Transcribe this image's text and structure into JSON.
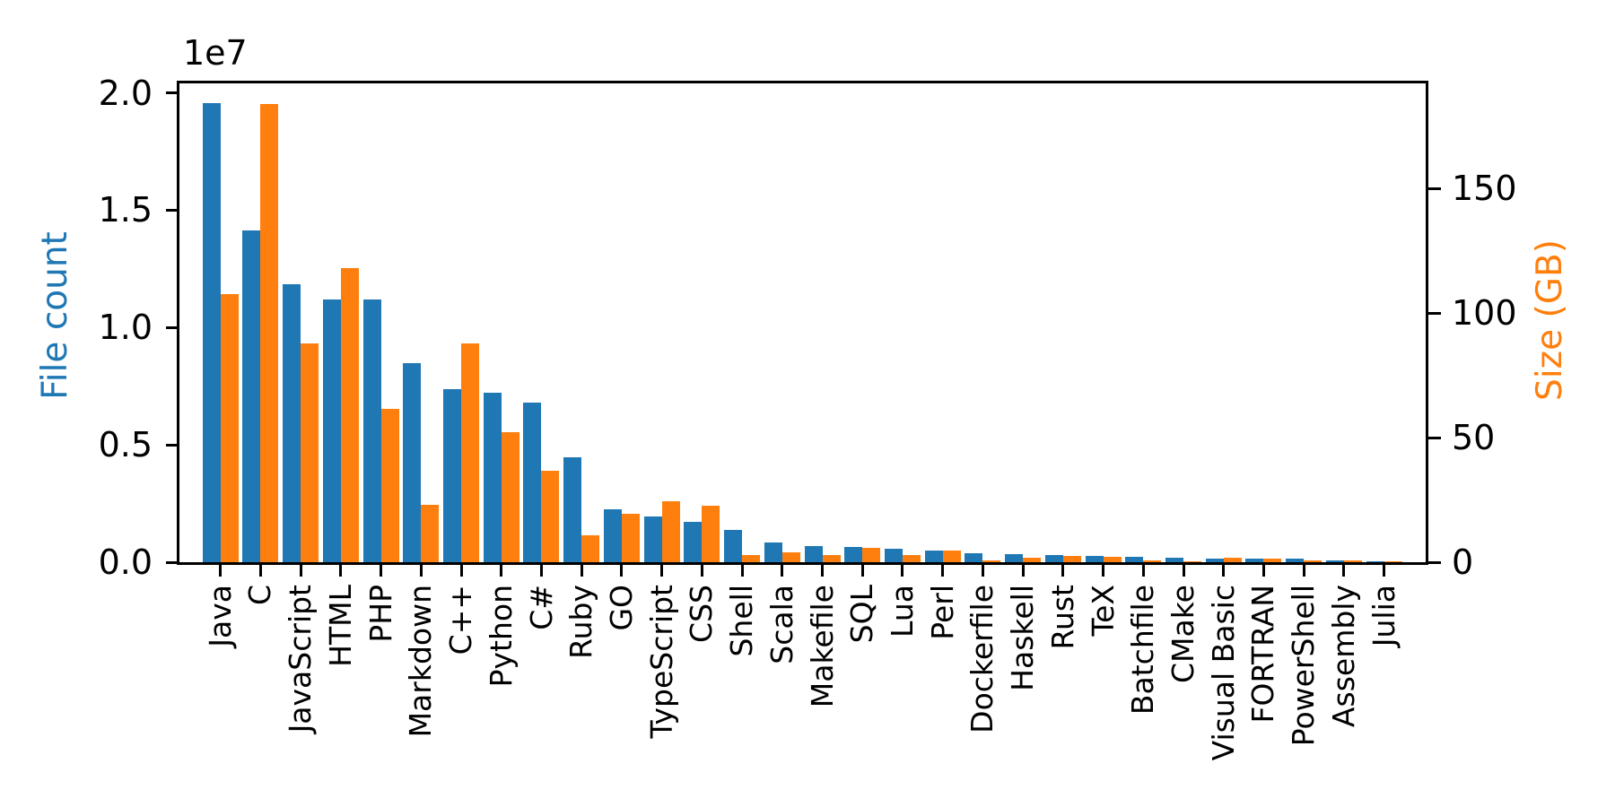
{
  "figure": {
    "background": "#ffffff",
    "spine_color": "#000000",
    "tick_color": "#000000"
  },
  "chart_data": {
    "type": "bar",
    "title": "",
    "grid": false,
    "legend": null,
    "categories": [
      "Java",
      "C",
      "JavaScript",
      "HTML",
      "PHP",
      "Markdown",
      "C++",
      "Python",
      "C#",
      "Ruby",
      "GO",
      "TypeScript",
      "CSS",
      "Shell",
      "Scala",
      "Makefile",
      "SQL",
      "Lua",
      "Perl",
      "Dockerfile",
      "Haskell",
      "Rust",
      "TeX",
      "Batchfile",
      "CMake",
      "Visual Basic",
      "FORTRAN",
      "PowerShell",
      "Assembly",
      "Julia"
    ],
    "series": [
      {
        "name": "File count",
        "axis": "left",
        "color": "#1f77b4",
        "values": [
          19548190,
          14143113,
          11839883,
          11178557,
          11177610,
          8464626,
          7380520,
          7226626,
          6811652,
          4473331,
          2265436,
          1940406,
          1734406,
          1385648,
          835755,
          679430,
          656671,
          578554,
          497949,
          366505,
          340623,
          322431,
          251015,
          236945,
          175282,
          155652,
          142038,
          136846,
          82905,
          58317
        ]
      },
      {
        "name": "Size (GB)",
        "axis": "right",
        "color": "#ff7f0e",
        "values": [
          107.7,
          183.83,
          87.82,
          118.12,
          61.41,
          23.09,
          87.73,
          52.03,
          36.83,
          10.95,
          19.28,
          24.59,
          22.67,
          3.01,
          3.87,
          2.92,
          5.67,
          2.81,
          4.7,
          0.71,
          1.85,
          2.68,
          2.15,
          0.7,
          0.54,
          1.91,
          1.62,
          0.69,
          0.78,
          0.29
        ]
      }
    ],
    "left_axis": {
      "label": "File count",
      "color": "#1f77b4",
      "offset_text": "1e7",
      "tick_labels": [
        "0.0",
        "0.5",
        "1.0",
        "1.5",
        "2.0"
      ],
      "tick_values": [
        0,
        5000000,
        10000000,
        15000000,
        20000000
      ],
      "range": [
        0,
        20400000
      ]
    },
    "right_axis": {
      "label": "Size (GB)",
      "color": "#ff7f0e",
      "tick_labels": [
        "0",
        "50",
        "100",
        "150"
      ],
      "tick_values": [
        0,
        50,
        100,
        150
      ],
      "range": [
        0,
        192.1
      ]
    }
  }
}
